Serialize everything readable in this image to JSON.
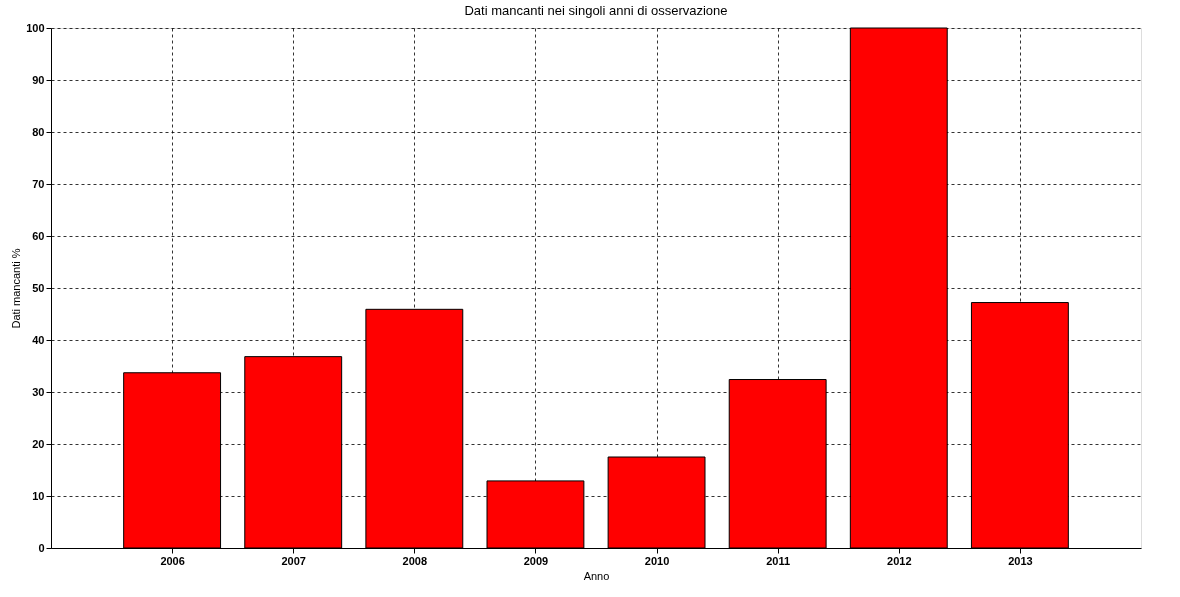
{
  "chart_data": {
    "type": "bar",
    "title": "Dati mancanti nei singoli anni di osservazione",
    "xlabel": "Anno",
    "ylabel": "Dati mancanti %",
    "x": [
      2006,
      2007,
      2008,
      2009,
      2010,
      2011,
      2012,
      2013
    ],
    "values": [
      33.7,
      36.8,
      45.9,
      12.9,
      17.5,
      32.4,
      100,
      47.2
    ],
    "color": "#ff0000",
    "xlim": [
      2005,
      2014
    ],
    "xticks": [
      2006,
      2007,
      2008,
      2009,
      2010,
      2011,
      2012,
      2013
    ],
    "ylim": [
      0,
      100
    ],
    "yticks": [
      0,
      10,
      20,
      30,
      40,
      50,
      60,
      70,
      80,
      90,
      100
    ],
    "grid": true
  }
}
